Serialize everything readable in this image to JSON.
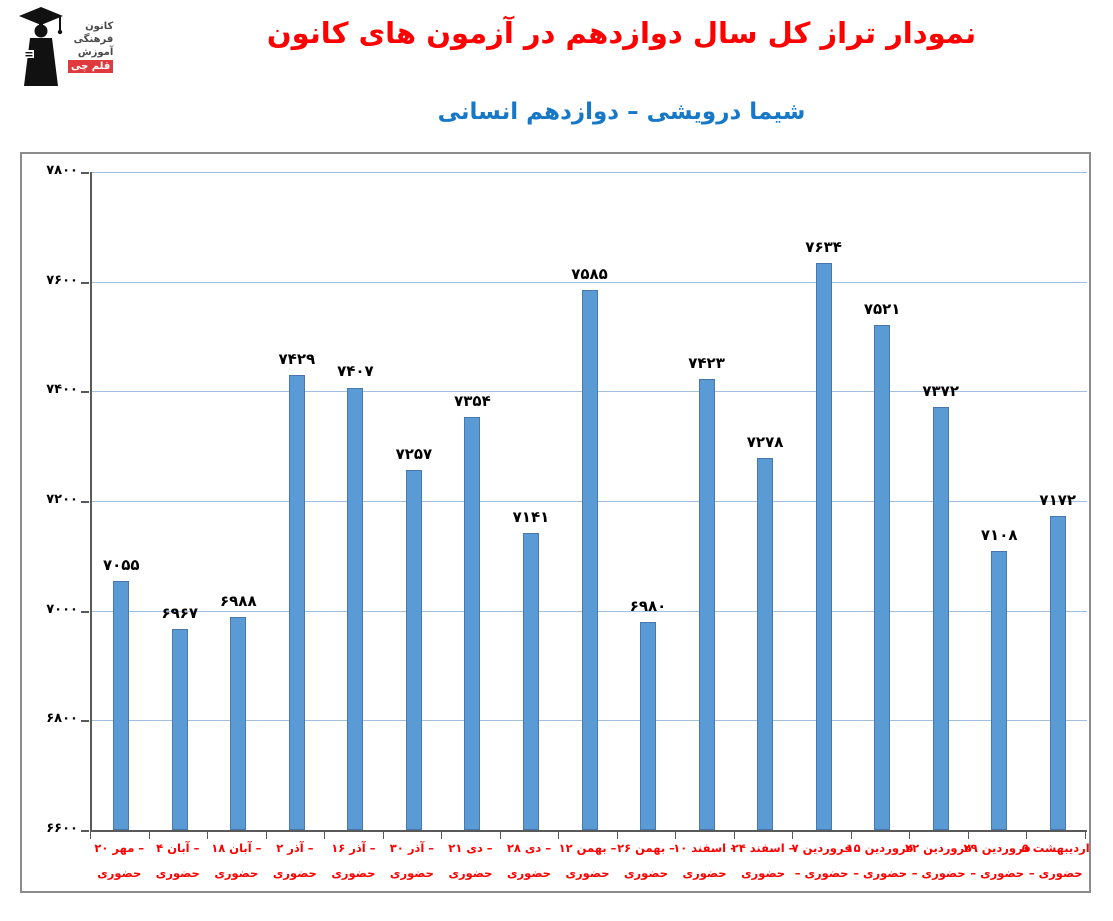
{
  "logo": {
    "org_lines": [
      "کانون",
      "فرهنگی",
      "آموزش"
    ],
    "badge": "قلم چی"
  },
  "header": {
    "title": "نمودار تراز کل سال دوازدهم در آزمون های کانون",
    "title_color": "#FF0000",
    "subtitle": "شیما درویشی – دوازدهم انسانی",
    "subtitle_color": "#1878C8"
  },
  "chart_data": {
    "type": "bar",
    "title": "نمودار تراز کل سال دوازدهم در آزمون های کانون",
    "subtitle": "شیما درویشی – دوازدهم انسانی",
    "xlabel": "",
    "ylabel": "",
    "ylim": [
      6600,
      7800
    ],
    "ytick_step": 200,
    "grid": true,
    "legend": false,
    "bar_color": "#5B9BD5",
    "bar_border_color": "#4779AE",
    "gridline_color": "#A3BFDF",
    "value_label_color": "#000000",
    "x_label_color": "#FF0000",
    "yticks": [
      {
        "value": 6600,
        "label_fa": "۶۶۰۰"
      },
      {
        "value": 6800,
        "label_fa": "۶۸۰۰"
      },
      {
        "value": 7000,
        "label_fa": "۷۰۰۰"
      },
      {
        "value": 7200,
        "label_fa": "۷۲۰۰"
      },
      {
        "value": 7400,
        "label_fa": "۷۴۰۰"
      },
      {
        "value": 7600,
        "label_fa": "۷۶۰۰"
      },
      {
        "value": 7800,
        "label_fa": "۷۸۰۰"
      }
    ],
    "points": [
      {
        "value": 7055,
        "value_fa": "۷۰۵۵",
        "date_fa": "۲۰ مهر –",
        "mode_fa": "حضوری"
      },
      {
        "value": 6967,
        "value_fa": "۶۹۶۷",
        "date_fa": "۴ آبان –",
        "mode_fa": "حضوری"
      },
      {
        "value": 6988,
        "value_fa": "۶۹۸۸",
        "date_fa": "۱۸ آبان –",
        "mode_fa": "حضوری"
      },
      {
        "value": 7429,
        "value_fa": "۷۴۲۹",
        "date_fa": "۲ آذر –",
        "mode_fa": "حضوری"
      },
      {
        "value": 7407,
        "value_fa": "۷۴۰۷",
        "date_fa": "۱۶ آذر –",
        "mode_fa": "حضوری"
      },
      {
        "value": 7257,
        "value_fa": "۷۲۵۷",
        "date_fa": "۳۰ آذر –",
        "mode_fa": "حضوری"
      },
      {
        "value": 7354,
        "value_fa": "۷۳۵۴",
        "date_fa": "۲۱ دی –",
        "mode_fa": "حضوری"
      },
      {
        "value": 7141,
        "value_fa": "۷۱۴۱",
        "date_fa": "۲۸ دی –",
        "mode_fa": "حضوری"
      },
      {
        "value": 7585,
        "value_fa": "۷۵۸۵",
        "date_fa": "۱۲ بهمن –",
        "mode_fa": "حضوری"
      },
      {
        "value": 6980,
        "value_fa": "۶۹۸۰",
        "date_fa": "۲۶ بهمن –",
        "mode_fa": "حضوری"
      },
      {
        "value": 7423,
        "value_fa": "۷۴۲۳",
        "date_fa": "۱۰ اسفند –",
        "mode_fa": "حضوری"
      },
      {
        "value": 7278,
        "value_fa": "۷۲۷۸",
        "date_fa": "۲۴ اسفند –",
        "mode_fa": "حضوری"
      },
      {
        "value": 7634,
        "value_fa": "۷۶۳۴",
        "date_fa": "۷ فروردین",
        "mode_fa": "– حضوری"
      },
      {
        "value": 7521,
        "value_fa": "۷۵۲۱",
        "date_fa": "۱۵ فروردین",
        "mode_fa": "– حضوری"
      },
      {
        "value": 7372,
        "value_fa": "۷۳۷۲",
        "date_fa": "۲۲ فروردین",
        "mode_fa": "– حضوری"
      },
      {
        "value": 7108,
        "value_fa": "۷۱۰۸",
        "date_fa": "۲۹ فروردین",
        "mode_fa": "– حضوری"
      },
      {
        "value": 7172,
        "value_fa": "۷۱۷۲",
        "date_fa": "۵ اردیبهشت",
        "mode_fa": "– حضوری"
      }
    ]
  }
}
